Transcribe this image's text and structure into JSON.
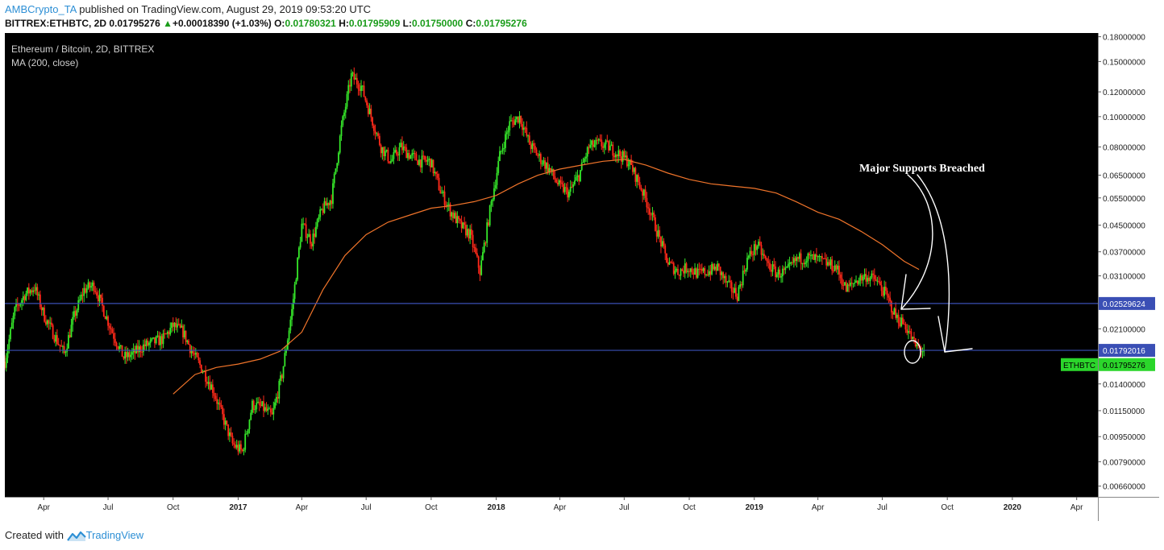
{
  "header": {
    "author": "AMBCrypto_TA",
    "published_text": " published on TradingView.com, August 29, 2019 09:53:20 UTC",
    "symbol": "BITTREX:ETHBTC, 2D",
    "last": "0.01795276",
    "change_arrow": "▲",
    "change": "+0.00018390 (+1.03%)",
    "o_label": "O:",
    "open": "0.01780321",
    "h_label": "H:",
    "high": "0.01795909",
    "l_label": "L:",
    "low": "0.01750000",
    "c_label": "C:",
    "close": "0.01795276"
  },
  "footer": {
    "created_with": "Created with",
    "brand": "TradingView"
  },
  "chart_data": {
    "type": "candlestick",
    "title": "Ethereum / Bitcoin, 2D, BITTREX",
    "indicator_label": "MA (200, close)",
    "y_scale": "log",
    "ylim": [
      0.0061,
      0.185
    ],
    "y_ticks": [
      "0.18000000",
      "0.15000000",
      "0.12000000",
      "0.10000000",
      "0.08000000",
      "0.06500000",
      "0.05500000",
      "0.04500000",
      "0.03700000",
      "0.03100000",
      "0.02100000",
      "0.01400000",
      "0.01150000",
      "0.00950000",
      "0.00790000",
      "0.00660000"
    ],
    "x_ticks": [
      "Apr",
      "Jul",
      "Oct",
      "2017",
      "Apr",
      "Jul",
      "Oct",
      "2018",
      "Apr",
      "Jul",
      "Oct",
      "2019",
      "Apr",
      "Jul",
      "Oct",
      "2020",
      "Apr"
    ],
    "x_tick_dates": [
      "2016-04-01",
      "2016-07-01",
      "2016-10-01",
      "2017-01-01",
      "2017-04-01",
      "2017-07-01",
      "2017-10-01",
      "2018-01-01",
      "2018-04-01",
      "2018-07-01",
      "2018-10-01",
      "2019-01-01",
      "2019-04-01",
      "2019-07-01",
      "2019-10-01",
      "2020-01-01",
      "2020-04-01"
    ],
    "x_range": [
      "2016-02-06",
      "2020-05-01"
    ],
    "price_path": [
      [
        "2016-02-06",
        0.0165
      ],
      [
        "2016-02-20",
        0.024
      ],
      [
        "2016-03-05",
        0.027
      ],
      [
        "2016-03-19",
        0.0285
      ],
      [
        "2016-04-02",
        0.023
      ],
      [
        "2016-04-16",
        0.02
      ],
      [
        "2016-04-30",
        0.0175
      ],
      [
        "2016-05-14",
        0.023
      ],
      [
        "2016-05-28",
        0.028
      ],
      [
        "2016-06-11",
        0.029
      ],
      [
        "2016-06-25",
        0.024
      ],
      [
        "2016-07-09",
        0.02
      ],
      [
        "2016-07-23",
        0.017
      ],
      [
        "2016-08-06",
        0.0175
      ],
      [
        "2016-08-20",
        0.0185
      ],
      [
        "2016-09-03",
        0.019
      ],
      [
        "2016-09-17",
        0.0195
      ],
      [
        "2016-10-01",
        0.0215
      ],
      [
        "2016-10-15",
        0.0205
      ],
      [
        "2016-10-29",
        0.0175
      ],
      [
        "2016-11-12",
        0.0155
      ],
      [
        "2016-11-26",
        0.0135
      ],
      [
        "2016-12-10",
        0.011
      ],
      [
        "2016-12-24",
        0.009
      ],
      [
        "2017-01-07",
        0.0085
      ],
      [
        "2017-01-21",
        0.012
      ],
      [
        "2017-02-04",
        0.0118
      ],
      [
        "2017-02-18",
        0.011
      ],
      [
        "2017-03-04",
        0.015
      ],
      [
        "2017-03-18",
        0.024
      ],
      [
        "2017-04-01",
        0.045
      ],
      [
        "2017-04-15",
        0.04
      ],
      [
        "2017-04-29",
        0.05
      ],
      [
        "2017-05-13",
        0.055
      ],
      [
        "2017-05-27",
        0.092
      ],
      [
        "2017-06-10",
        0.135
      ],
      [
        "2017-06-24",
        0.125
      ],
      [
        "2017-07-08",
        0.1
      ],
      [
        "2017-07-22",
        0.08
      ],
      [
        "2017-08-05",
        0.072
      ],
      [
        "2017-08-19",
        0.08
      ],
      [
        "2017-09-02",
        0.075
      ],
      [
        "2017-09-16",
        0.072
      ],
      [
        "2017-09-30",
        0.072
      ],
      [
        "2017-10-14",
        0.058
      ],
      [
        "2017-10-28",
        0.05
      ],
      [
        "2017-11-11",
        0.045
      ],
      [
        "2017-11-25",
        0.042
      ],
      [
        "2017-12-09",
        0.032
      ],
      [
        "2017-12-23",
        0.05
      ],
      [
        "2018-01-06",
        0.075
      ],
      [
        "2018-01-20",
        0.095
      ],
      [
        "2018-02-03",
        0.1
      ],
      [
        "2018-02-17",
        0.082
      ],
      [
        "2018-03-03",
        0.074
      ],
      [
        "2018-03-17",
        0.068
      ],
      [
        "2018-03-31",
        0.06
      ],
      [
        "2018-04-14",
        0.057
      ],
      [
        "2018-04-28",
        0.065
      ],
      [
        "2018-05-12",
        0.08
      ],
      [
        "2018-05-26",
        0.082
      ],
      [
        "2018-06-09",
        0.08
      ],
      [
        "2018-06-23",
        0.076
      ],
      [
        "2018-07-07",
        0.072
      ],
      [
        "2018-07-21",
        0.062
      ],
      [
        "2018-08-04",
        0.052
      ],
      [
        "2018-08-18",
        0.042
      ],
      [
        "2018-09-01",
        0.034
      ],
      [
        "2018-09-15",
        0.032
      ],
      [
        "2018-09-29",
        0.033
      ],
      [
        "2018-10-13",
        0.0315
      ],
      [
        "2018-10-27",
        0.032
      ],
      [
        "2018-11-10",
        0.033
      ],
      [
        "2018-11-24",
        0.029
      ],
      [
        "2018-12-08",
        0.027
      ],
      [
        "2018-12-22",
        0.035
      ],
      [
        "2019-01-05",
        0.039
      ],
      [
        "2019-01-19",
        0.034
      ],
      [
        "2019-02-02",
        0.0315
      ],
      [
        "2019-02-16",
        0.032
      ],
      [
        "2019-03-02",
        0.035
      ],
      [
        "2019-03-16",
        0.0355
      ],
      [
        "2019-03-30",
        0.035
      ],
      [
        "2019-04-13",
        0.034
      ],
      [
        "2019-04-27",
        0.033
      ],
      [
        "2019-05-11",
        0.028
      ],
      [
        "2019-05-25",
        0.03
      ],
      [
        "2019-06-08",
        0.031
      ],
      [
        "2019-06-22",
        0.03
      ],
      [
        "2019-07-06",
        0.027
      ],
      [
        "2019-07-20",
        0.023
      ],
      [
        "2019-08-03",
        0.0215
      ],
      [
        "2019-08-17",
        0.0185
      ],
      [
        "2019-08-29",
        0.0179
      ]
    ],
    "ma_path": [
      [
        "2016-10-01",
        0.013
      ],
      [
        "2016-11-01",
        0.015
      ],
      [
        "2016-12-01",
        0.0158
      ],
      [
        "2017-01-01",
        0.0162
      ],
      [
        "2017-02-01",
        0.0168
      ],
      [
        "2017-03-01",
        0.0178
      ],
      [
        "2017-04-01",
        0.0205
      ],
      [
        "2017-05-01",
        0.028
      ],
      [
        "2017-06-01",
        0.036
      ],
      [
        "2017-07-01",
        0.042
      ],
      [
        "2017-08-01",
        0.046
      ],
      [
        "2017-09-01",
        0.0485
      ],
      [
        "2017-10-01",
        0.051
      ],
      [
        "2017-11-01",
        0.052
      ],
      [
        "2017-12-01",
        0.0535
      ],
      [
        "2018-01-01",
        0.056
      ],
      [
        "2018-02-01",
        0.061
      ],
      [
        "2018-03-01",
        0.065
      ],
      [
        "2018-04-01",
        0.068
      ],
      [
        "2018-05-01",
        0.07
      ],
      [
        "2018-06-01",
        0.072
      ],
      [
        "2018-07-01",
        0.073
      ],
      [
        "2018-08-01",
        0.07
      ],
      [
        "2018-09-01",
        0.066
      ],
      [
        "2018-10-01",
        0.063
      ],
      [
        "2018-11-01",
        0.061
      ],
      [
        "2018-12-01",
        0.06
      ],
      [
        "2019-01-01",
        0.059
      ],
      [
        "2019-02-01",
        0.057
      ],
      [
        "2019-03-01",
        0.0535
      ],
      [
        "2019-04-01",
        0.0495
      ],
      [
        "2019-05-01",
        0.047
      ],
      [
        "2019-06-01",
        0.043
      ],
      [
        "2019-07-01",
        0.039
      ],
      [
        "2019-08-01",
        0.0345
      ],
      [
        "2019-08-22",
        0.0325
      ]
    ],
    "horizontal_lines": [
      {
        "price": 0.02529624,
        "label": "0.02529624",
        "color": "#3a4fb5"
      },
      {
        "price": 0.01792016,
        "label": "0.01792016",
        "color": "#3a4fb5"
      }
    ],
    "last_price_tag": {
      "symbol": "ETHBTC",
      "label": "0.01795276",
      "price": 0.01795276
    },
    "annotation": {
      "text": "Major Supports Breached"
    },
    "colors": {
      "background": "#000000",
      "up": "#36e82a",
      "down": "#ff2a1a",
      "ma": "#f0742a",
      "level": "#3a4fb5",
      "tag": "#2bd62b"
    }
  }
}
